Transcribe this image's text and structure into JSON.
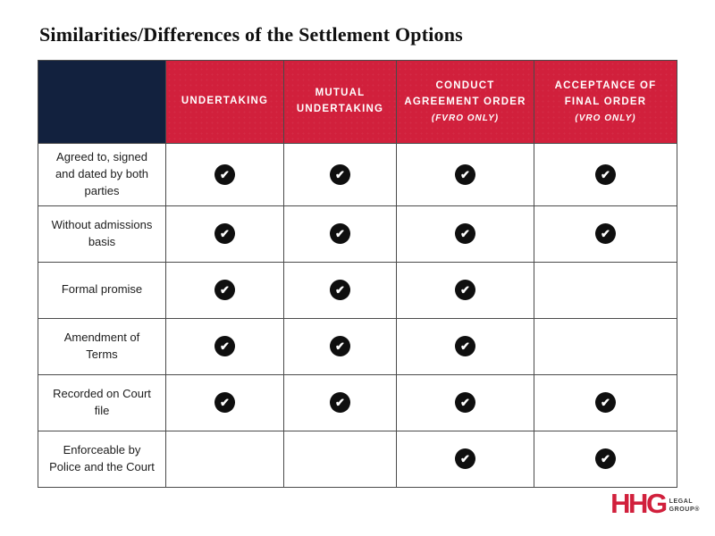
{
  "page": {
    "title": "Similarities/Differences of the Settlement Options"
  },
  "table": {
    "columns": [
      {
        "label": "UNDERTAKING",
        "sub": ""
      },
      {
        "label": "MUTUAL UNDERTAKING",
        "sub": ""
      },
      {
        "label": "CONDUCT AGREEMENT ORDER",
        "sub": "(FVRO ONLY)"
      },
      {
        "label": "ACCEPTANCE OF FINAL ORDER",
        "sub": "(VRO ONLY)"
      }
    ],
    "rows": [
      {
        "label": "Agreed to, signed and dated by both parties",
        "checks": [
          true,
          true,
          true,
          true
        ]
      },
      {
        "label": "Without admissions basis",
        "checks": [
          true,
          true,
          true,
          true
        ]
      },
      {
        "label": "Formal promise",
        "checks": [
          true,
          true,
          true,
          false
        ]
      },
      {
        "label": "Amendment of Terms",
        "checks": [
          true,
          true,
          true,
          false
        ]
      },
      {
        "label": "Recorded on Court file",
        "checks": [
          true,
          true,
          true,
          true
        ]
      },
      {
        "label": "Enforceable by Police and the Court",
        "checks": [
          false,
          false,
          true,
          true
        ]
      }
    ]
  },
  "icons": {
    "check": "✔"
  },
  "logo": {
    "brand": "HHG",
    "sub_top": "LEGAL",
    "sub_bottom": "GROUP®"
  },
  "colors": {
    "header_navy": "#12213E",
    "header_red": "#D1203C",
    "check_black": "#0F0F0F",
    "logo_red": "#D1203C"
  }
}
